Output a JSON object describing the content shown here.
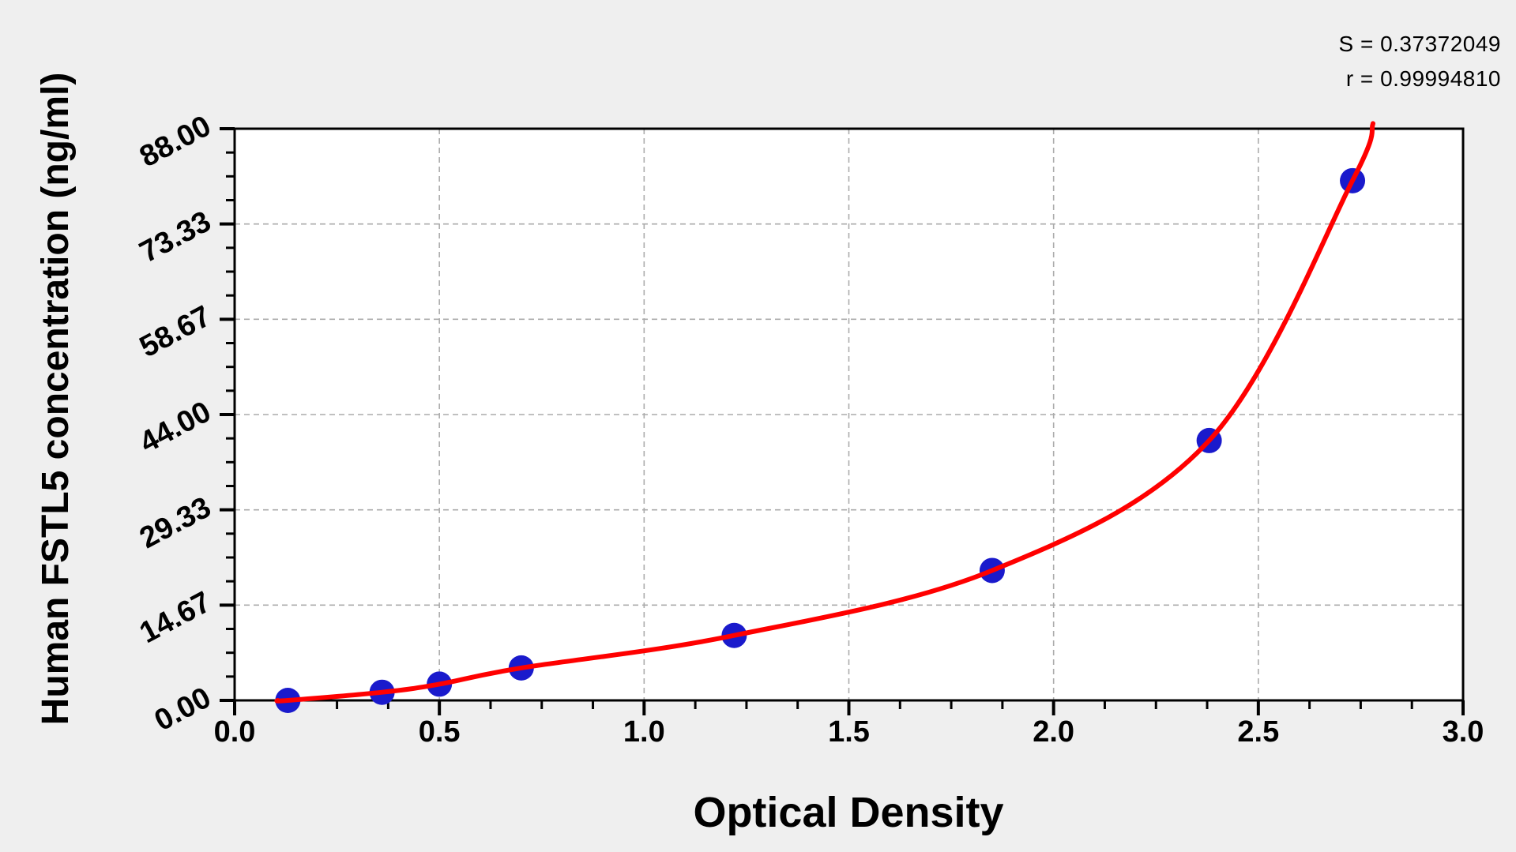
{
  "stats": {
    "s": "S = 0.37372049",
    "r": "r = 0.99994810"
  },
  "chart_data": {
    "type": "scatter",
    "title": "",
    "xlabel": "Optical Density",
    "ylabel": "Human FSTL5 concentration (ng/ml)",
    "xlim": [
      0,
      3.0
    ],
    "ylim": [
      0,
      88
    ],
    "x_ticks": {
      "values": [
        0,
        0.5,
        1.0,
        1.5,
        2.0,
        2.5,
        3.0
      ],
      "labels": [
        "0.0",
        "0.5",
        "1.0",
        "1.5",
        "2.0",
        "2.5",
        "3.0"
      ],
      "minor_step": 0.125
    },
    "y_ticks": {
      "values": [
        0,
        14.6667,
        29.3333,
        44.0,
        58.6667,
        73.3333,
        88.0
      ],
      "labels": [
        "0.00",
        "14.67",
        "29.33",
        "44.00",
        "58.67",
        "73.33",
        "88.00"
      ],
      "minor_step": 3.6667
    },
    "grid": {
      "show": true,
      "style": "dashed",
      "color": "#ababab"
    },
    "legend": {
      "show": false
    },
    "series": [
      {
        "name": "standard-points",
        "type": "scatter",
        "color": "#1a1acc",
        "points": [
          {
            "od": 0.13,
            "conc": 0
          },
          {
            "od": 0.36,
            "conc": 1.25
          },
          {
            "od": 0.5,
            "conc": 2.5
          },
          {
            "od": 0.7,
            "conc": 5
          },
          {
            "od": 1.22,
            "conc": 10
          },
          {
            "od": 1.85,
            "conc": 20
          },
          {
            "od": 2.38,
            "conc": 40
          },
          {
            "od": 2.73,
            "conc": 80
          }
        ]
      },
      {
        "name": "fit-curve",
        "type": "line",
        "color": "#ff0000",
        "starts_at": {
          "od": 0.105,
          "conc": 0
        },
        "extends_to": {
          "od": 2.78,
          "conc": 88.8
        }
      }
    ],
    "colors": {
      "page_bg": "#efefef",
      "plot_bg": "#ffffff",
      "axis": "#000000",
      "text": "#000000",
      "point": "#1a1acc",
      "curve": "#ff0000",
      "grid": "#ababab"
    }
  }
}
